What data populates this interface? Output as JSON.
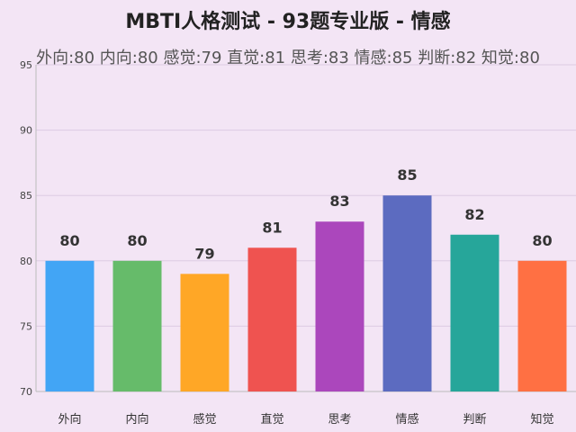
{
  "chart_data": {
    "type": "bar",
    "title": "MBTI人格测试 - 93题专业版 - 情感",
    "subtitle": "外向:80 内向:80 感觉:79 直觉:81 思考:83 情感:85 判断:82 知觉:80",
    "categories": [
      "外向",
      "内向",
      "感觉",
      "直觉",
      "思考",
      "情感",
      "判断",
      "知觉"
    ],
    "values": [
      80,
      80,
      79,
      81,
      83,
      85,
      82,
      80
    ],
    "colors": [
      "#42a5f5",
      "#66bb6a",
      "#ffa726",
      "#ef5350",
      "#ab47bc",
      "#5c6bc0",
      "#26a69a",
      "#ff7043"
    ],
    "ylim": [
      70,
      95
    ],
    "yticks": [
      70,
      75,
      80,
      85,
      90,
      95
    ],
    "grid": true,
    "xlabel": "",
    "ylabel": ""
  }
}
